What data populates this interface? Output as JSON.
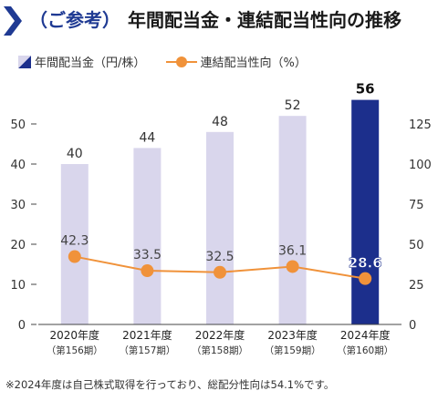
{
  "header": {
    "prefix": "（ご参考）",
    "title": "年間配当金・連結配当性向の推移"
  },
  "legend": {
    "bar_label": "年間配当金（円/株）",
    "line_label": "連結配当性向（%）"
  },
  "footnote": "※2024年度は自己株式取得を行っており、総配分性向は54.1%です。",
  "colors": {
    "bar": "#d9d6ec",
    "bar_highlight": "#1c2f8c",
    "line": "#f0923a",
    "title_accent": "#1f3a93",
    "axis": "#444444"
  },
  "chart_data": {
    "type": "bar",
    "categories": [
      "2020年度",
      "2021年度",
      "2022年度",
      "2023年度",
      "2024年度"
    ],
    "periods": [
      "（第156期）",
      "（第157期）",
      "（第158期）",
      "（第159期）",
      "（第160期）"
    ],
    "series": [
      {
        "name": "年間配当金（円/株）",
        "type": "bar",
        "axis": "left",
        "values": [
          40,
          44,
          48,
          52,
          56
        ]
      },
      {
        "name": "連結配当性向（%）",
        "type": "line",
        "axis": "right",
        "values": [
          42.3,
          33.5,
          32.5,
          36.1,
          28.6
        ]
      }
    ],
    "ylim_left": [
      0,
      60
    ],
    "yticks_left": [
      0,
      10,
      20,
      30,
      40,
      50
    ],
    "ylim_right": [
      0,
      150
    ],
    "yticks_right": [
      0,
      25,
      50,
      75,
      100,
      125
    ],
    "highlight_index": 4,
    "legend_position": "top-left",
    "grid": false
  }
}
